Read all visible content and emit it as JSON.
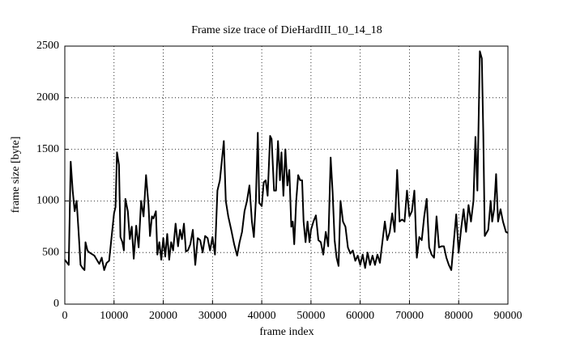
{
  "chart_data": {
    "type": "line",
    "title": "Frame size trace of DieHardIII_10_14_18",
    "x_label": "frame index",
    "y_label": "frame size [byte]",
    "xlim": [
      0,
      90000
    ],
    "ylim": [
      0,
      2500
    ],
    "xticks": [
      0,
      10000,
      20000,
      30000,
      40000,
      50000,
      60000,
      70000,
      80000,
      90000
    ],
    "yticks": [
      0,
      500,
      1000,
      1500,
      2000,
      2500
    ],
    "grid": true,
    "x": [
      0,
      800,
      1200,
      1600,
      2000,
      2400,
      2800,
      3200,
      3600,
      4000,
      4200,
      4600,
      5000,
      6000,
      7000,
      7500,
      8000,
      8500,
      9000,
      9500,
      10000,
      10300,
      10600,
      11000,
      11300,
      11700,
      12000,
      12300,
      12800,
      13200,
      13600,
      14000,
      14500,
      15000,
      15500,
      16000,
      16500,
      17000,
      17300,
      17700,
      18000,
      18500,
      18800,
      19200,
      19600,
      20000,
      20400,
      20800,
      21200,
      21600,
      22000,
      22500,
      23000,
      23400,
      23800,
      24200,
      24600,
      25000,
      25500,
      26000,
      26500,
      27000,
      27500,
      28000,
      28500,
      29000,
      29500,
      30000,
      30500,
      31000,
      31500,
      32300,
      32700,
      33200,
      33800,
      34400,
      35000,
      35500,
      36000,
      36500,
      37000,
      37500,
      38000,
      38400,
      38800,
      39200,
      39500,
      40000,
      40400,
      40800,
      41200,
      41700,
      42000,
      42500,
      42900,
      43300,
      43700,
      44000,
      44400,
      44800,
      45200,
      45600,
      46000,
      46300,
      46600,
      47000,
      47400,
      47800,
      48200,
      48500,
      48900,
      49300,
      49700,
      50000,
      50500,
      51000,
      51500,
      52000,
      52500,
      53000,
      53500,
      54000,
      54400,
      54800,
      55200,
      55600,
      56000,
      56500,
      57000,
      57500,
      58000,
      58500,
      59000,
      59500,
      60000,
      60500,
      61000,
      61500,
      62000,
      62500,
      63000,
      63500,
      64000,
      64500,
      65000,
      65500,
      66000,
      66500,
      67000,
      67500,
      68000,
      68500,
      69000,
      69500,
      70000,
      70500,
      71000,
      71500,
      72000,
      72500,
      73000,
      73500,
      74000,
      74500,
      75000,
      75500,
      76000,
      76500,
      77000,
      77500,
      78000,
      78500,
      79000,
      79500,
      80000,
      80500,
      81000,
      81500,
      82000,
      82500,
      83000,
      83400,
      83800,
      84300,
      84700,
      85000,
      85300,
      86000,
      86500,
      86800,
      87200,
      87600,
      88000,
      88500,
      89000,
      89600,
      90000
    ],
    "series": [
      {
        "color": "#000000",
        "values": [
          430,
          380,
          1380,
          1100,
          900,
          1000,
          700,
          380,
          350,
          330,
          600,
          520,
          500,
          470,
          390,
          450,
          330,
          400,
          420,
          650,
          880,
          940,
          1470,
          1350,
          650,
          600,
          520,
          1020,
          900,
          630,
          750,
          440,
          760,
          550,
          1000,
          850,
          1250,
          960,
          660,
          850,
          830,
          900,
          480,
          600,
          430,
          640,
          460,
          680,
          430,
          600,
          520,
          780,
          560,
          720,
          630,
          780,
          510,
          520,
          580,
          720,
          380,
          640,
          620,
          500,
          660,
          640,
          520,
          650,
          480,
          1100,
          1200,
          1580,
          1000,
          850,
          720,
          580,
          470,
          600,
          700,
          900,
          1000,
          1150,
          800,
          650,
          1000,
          1660,
          980,
          950,
          1180,
          1200,
          1050,
          1630,
          1600,
          1100,
          1100,
          1580,
          1200,
          1470,
          1050,
          1500,
          1150,
          1300,
          750,
          800,
          580,
          1000,
          1250,
          1200,
          1200,
          800,
          600,
          800,
          600,
          720,
          800,
          860,
          620,
          600,
          480,
          700,
          560,
          1420,
          1080,
          620,
          450,
          370,
          1000,
          800,
          750,
          550,
          490,
          520,
          420,
          470,
          380,
          480,
          350,
          500,
          380,
          470,
          380,
          480,
          400,
          600,
          800,
          620,
          700,
          880,
          700,
          1300,
          800,
          820,
          800,
          1100,
          850,
          900,
          1100,
          450,
          650,
          620,
          850,
          1020,
          550,
          480,
          450,
          850,
          550,
          560,
          560,
          450,
          380,
          330,
          600,
          870,
          500,
          730,
          920,
          700,
          960,
          800,
          1000,
          1620,
          1100,
          2450,
          2380,
          1650,
          660,
          720,
          1000,
          800,
          920,
          1260,
          800,
          920,
          800,
          700,
          690
        ]
      }
    ]
  }
}
